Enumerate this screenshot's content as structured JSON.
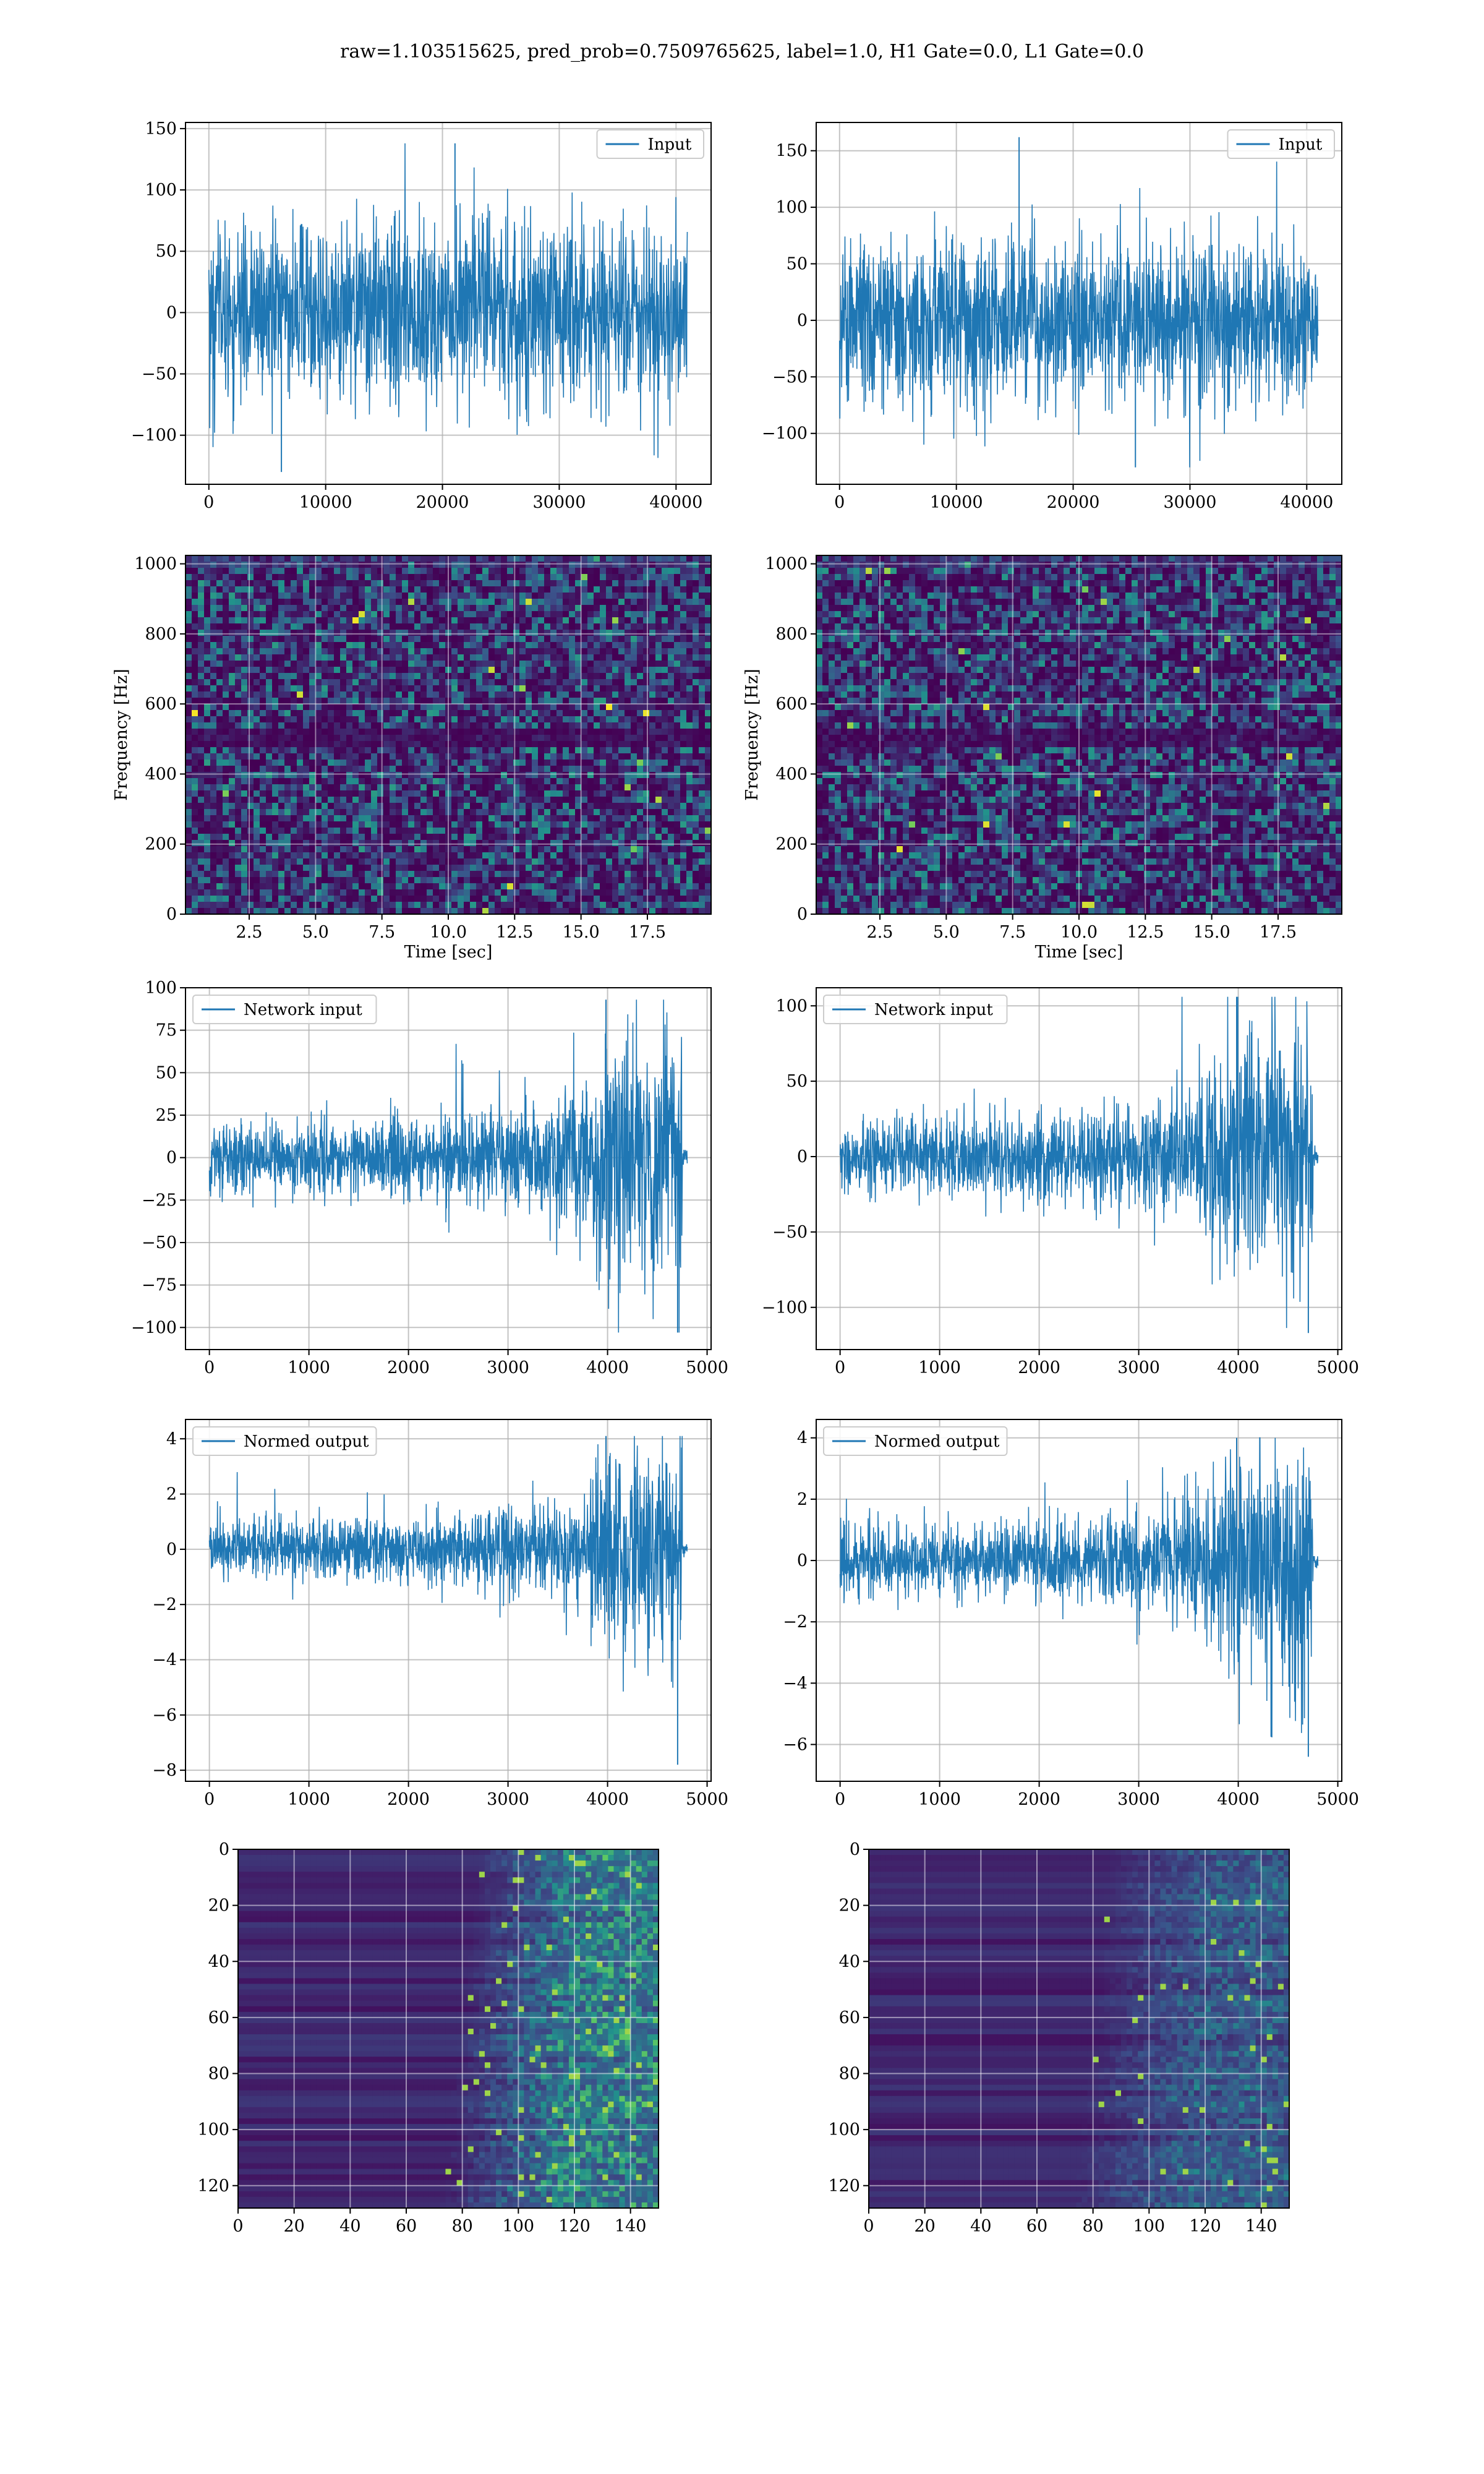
{
  "figure_title": "raw=1.103515625, pred_prob=0.7509765625, label=1.0, H1 Gate=0.0, L1 Gate=0.0",
  "colors": {
    "line": "#1f77b4",
    "grid": "#b0b0b0",
    "legend_border": "#cccccc"
  },
  "chart_data": [
    {
      "type": "line",
      "row": 1,
      "col": 1,
      "legend": "Input",
      "xlim": [
        -2000,
        43000
      ],
      "ylim": [
        -140,
        155
      ],
      "grid": true,
      "legend_loc": "upper right",
      "xticks": [
        0,
        10000,
        20000,
        30000,
        40000
      ],
      "yticks": [
        -100,
        -50,
        0,
        50,
        100,
        150
      ],
      "x_end": 40960,
      "envelope": {
        "min": -130,
        "max": 138,
        "typical_amp": 45
      }
    },
    {
      "type": "line",
      "row": 1,
      "col": 2,
      "legend": "Input",
      "xlim": [
        -2000,
        43000
      ],
      "ylim": [
        -145,
        175
      ],
      "grid": true,
      "legend_loc": "upper right",
      "xticks": [
        0,
        10000,
        20000,
        30000,
        40000
      ],
      "yticks": [
        -100,
        -50,
        0,
        50,
        100,
        150
      ],
      "x_end": 40960,
      "envelope": {
        "min": -130,
        "max": 162,
        "typical_amp": 45
      }
    },
    {
      "type": "heatmap",
      "row": 2,
      "col": 1,
      "xlabel": "Time [sec]",
      "ylabel": "Frequency [Hz]",
      "xlim": [
        0.1,
        19.9
      ],
      "ylim": [
        0,
        1024
      ],
      "grid": true,
      "xticks": [
        2.5,
        5.0,
        7.5,
        10.0,
        12.5,
        15.0,
        17.5
      ],
      "yticks": [
        0,
        200,
        400,
        600,
        800,
        1000
      ],
      "dark_band_hz": 500
    },
    {
      "type": "heatmap",
      "row": 2,
      "col": 2,
      "xlabel": "Time [sec]",
      "ylabel": "Frequency [Hz]",
      "xlim": [
        0.1,
        19.9
      ],
      "ylim": [
        0,
        1024
      ],
      "grid": true,
      "xticks": [
        2.5,
        5.0,
        7.5,
        10.0,
        12.5,
        15.0,
        17.5
      ],
      "yticks": [
        0,
        200,
        400,
        600,
        800,
        1000
      ],
      "dark_band_hz": 500
    },
    {
      "type": "line",
      "row": 3,
      "col": 1,
      "legend": "Network input",
      "xlim": [
        -240,
        5040
      ],
      "ylim": [
        -113,
        100
      ],
      "grid": true,
      "legend_loc": "upper left",
      "xticks": [
        0,
        1000,
        2000,
        3000,
        4000,
        5000
      ],
      "yticks": [
        -100,
        -75,
        -50,
        -25,
        0,
        25,
        50,
        75,
        100
      ],
      "x_end": 4800,
      "envelope": {
        "min": -103,
        "max": 93,
        "typical_amp": 13,
        "burst_start": 3650,
        "burst_peak": 3950,
        "burst_end": 4750
      }
    },
    {
      "type": "line",
      "row": 3,
      "col": 2,
      "legend": "Network input",
      "xlim": [
        -240,
        5040
      ],
      "ylim": [
        -128,
        112
      ],
      "grid": true,
      "legend_loc": "upper left",
      "xticks": [
        0,
        1000,
        2000,
        3000,
        4000,
        5000
      ],
      "yticks": [
        -100,
        -50,
        0,
        50,
        100
      ],
      "x_end": 4800,
      "envelope": {
        "min": -117,
        "max": 106,
        "typical_amp": 15,
        "burst_start": 3650,
        "burst_peak": 3950,
        "burst_end": 4750
      }
    },
    {
      "type": "line",
      "row": 4,
      "col": 1,
      "legend": "Normed output",
      "xlim": [
        -240,
        5040
      ],
      "ylim": [
        -8.4,
        4.7
      ],
      "grid": true,
      "legend_loc": "upper left",
      "xticks": [
        0,
        1000,
        2000,
        3000,
        4000,
        5000
      ],
      "yticks": [
        -8,
        -6,
        -4,
        -2,
        0,
        2,
        4
      ],
      "x_end": 4800,
      "envelope": {
        "min": -7.8,
        "max": 4.1,
        "typical_amp": 0.65,
        "burst_start": 3650,
        "burst_peak": 3950,
        "burst_end": 4750
      }
    },
    {
      "type": "line",
      "row": 4,
      "col": 2,
      "legend": "Normed output",
      "xlim": [
        -240,
        5040
      ],
      "ylim": [
        -7.2,
        4.6
      ],
      "grid": true,
      "legend_loc": "upper left",
      "xticks": [
        0,
        1000,
        2000,
        3000,
        4000,
        5000
      ],
      "yticks": [
        -6,
        -4,
        -2,
        0,
        2,
        4
      ],
      "x_end": 4800,
      "envelope": {
        "min": -6.4,
        "max": 4.0,
        "typical_amp": 0.7,
        "burst_start": 3650,
        "burst_peak": 3950,
        "burst_end": 4750
      }
    },
    {
      "type": "heatmap",
      "row": 5,
      "col": 1,
      "xlim": [
        0,
        150
      ],
      "ylim": [
        128,
        0
      ],
      "grid": true,
      "xticks": [
        0,
        20,
        40,
        60,
        80,
        100,
        120,
        140
      ],
      "yticks": [
        0,
        20,
        40,
        60,
        80,
        100,
        120
      ],
      "activity_onset_col": 85,
      "intensity": 1.0
    },
    {
      "type": "heatmap",
      "row": 5,
      "col": 2,
      "xlim": [
        0,
        150
      ],
      "ylim": [
        128,
        0
      ],
      "grid": true,
      "xticks": [
        0,
        20,
        40,
        60,
        80,
        100,
        120,
        140
      ],
      "yticks": [
        0,
        20,
        40,
        60,
        80,
        100,
        120
      ],
      "activity_onset_col": 85,
      "intensity": 0.55
    }
  ]
}
